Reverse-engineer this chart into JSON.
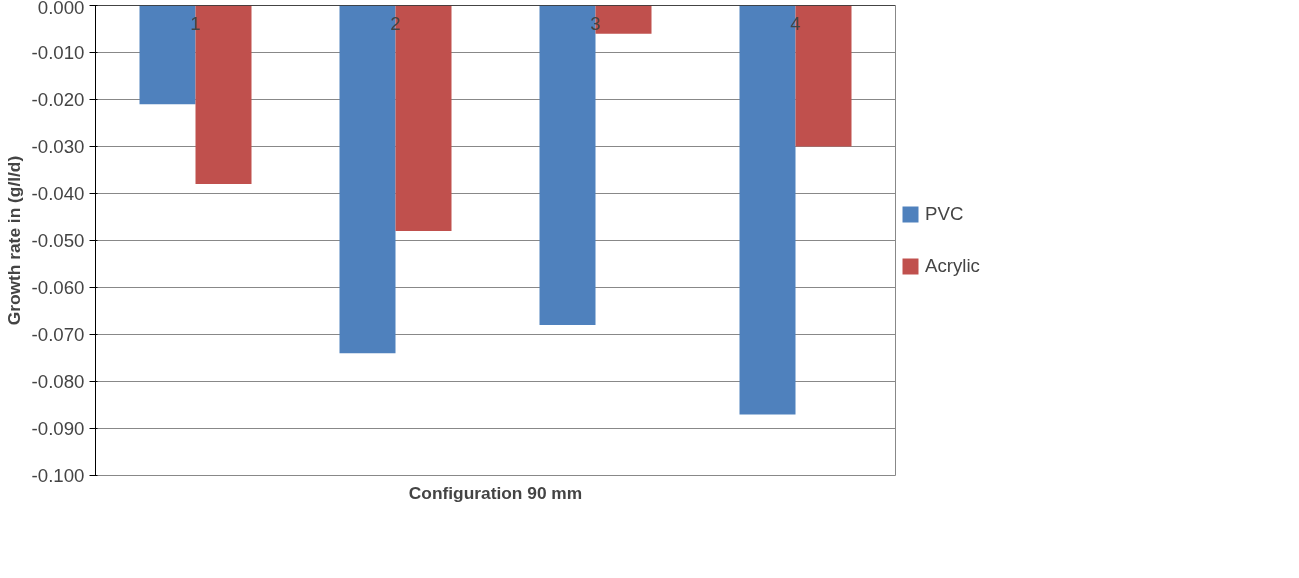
{
  "chart_data": {
    "type": "bar",
    "xlabel": "Configuration 90 mm",
    "ylabel": "Growth rate in (g/l/d)",
    "categories": [
      "1",
      "2",
      "3",
      "4"
    ],
    "series": [
      {
        "name": "PVC",
        "color": "#4f81bd",
        "values": [
          -0.021,
          -0.074,
          -0.068,
          -0.087
        ]
      },
      {
        "name": "Acrylic",
        "color": "#c0504d",
        "values": [
          -0.038,
          -0.048,
          -0.006,
          -0.03
        ]
      }
    ],
    "ylim": [
      -0.1,
      0.0
    ],
    "yticks": [
      {
        "value": 0.0,
        "label": "0.000"
      },
      {
        "value": -0.01,
        "label": "-0.010"
      },
      {
        "value": -0.02,
        "label": "-0.020"
      },
      {
        "value": -0.03,
        "label": "-0.030"
      },
      {
        "value": -0.04,
        "label": "-0.040"
      },
      {
        "value": -0.05,
        "label": "-0.050"
      },
      {
        "value": -0.06,
        "label": "-0.060"
      },
      {
        "value": -0.07,
        "label": "-0.070"
      },
      {
        "value": -0.08,
        "label": "-0.080"
      },
      {
        "value": -0.09,
        "label": "-0.090"
      },
      {
        "value": -0.1,
        "label": "-0.100"
      }
    ],
    "grid": "y",
    "legend": "right"
  }
}
